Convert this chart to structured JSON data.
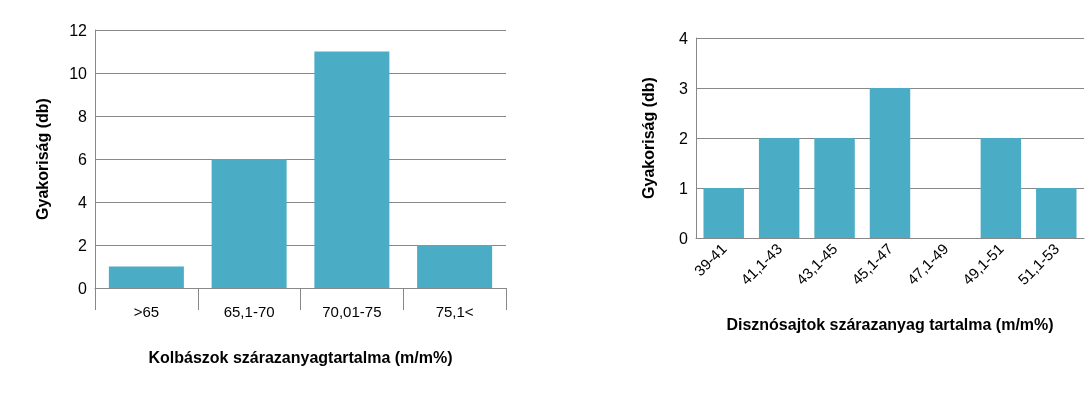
{
  "chart_data": [
    {
      "type": "bar",
      "xlabel": "Kolbászok szárazanyagtartalma (m/m%)",
      "ylabel": "Gyakoriság (db)",
      "categories": [
        ">65",
        "65,1-70",
        "70,01-75",
        "75,1<"
      ],
      "values": [
        1,
        6,
        11,
        2
      ],
      "color": "#4bacc6",
      "ylim": [
        0,
        12
      ],
      "yticks": [
        0,
        2,
        4,
        6,
        8,
        10,
        12
      ],
      "grid": "y"
    },
    {
      "type": "bar",
      "xlabel": "Disznósajtok szárazanyag tartalma (m/m%)",
      "ylabel": "Gyakoriság (db)",
      "categories": [
        "39-41",
        "41,1-43",
        "43,1-45",
        "45,1-47",
        "47,1-49",
        "49,1-51",
        "51,1-53"
      ],
      "values": [
        1,
        2,
        2,
        3,
        0,
        2,
        1
      ],
      "color": "#4bacc6",
      "ylim": [
        0,
        4
      ],
      "yticks": [
        0,
        1,
        2,
        3,
        4
      ],
      "grid": "y"
    }
  ]
}
